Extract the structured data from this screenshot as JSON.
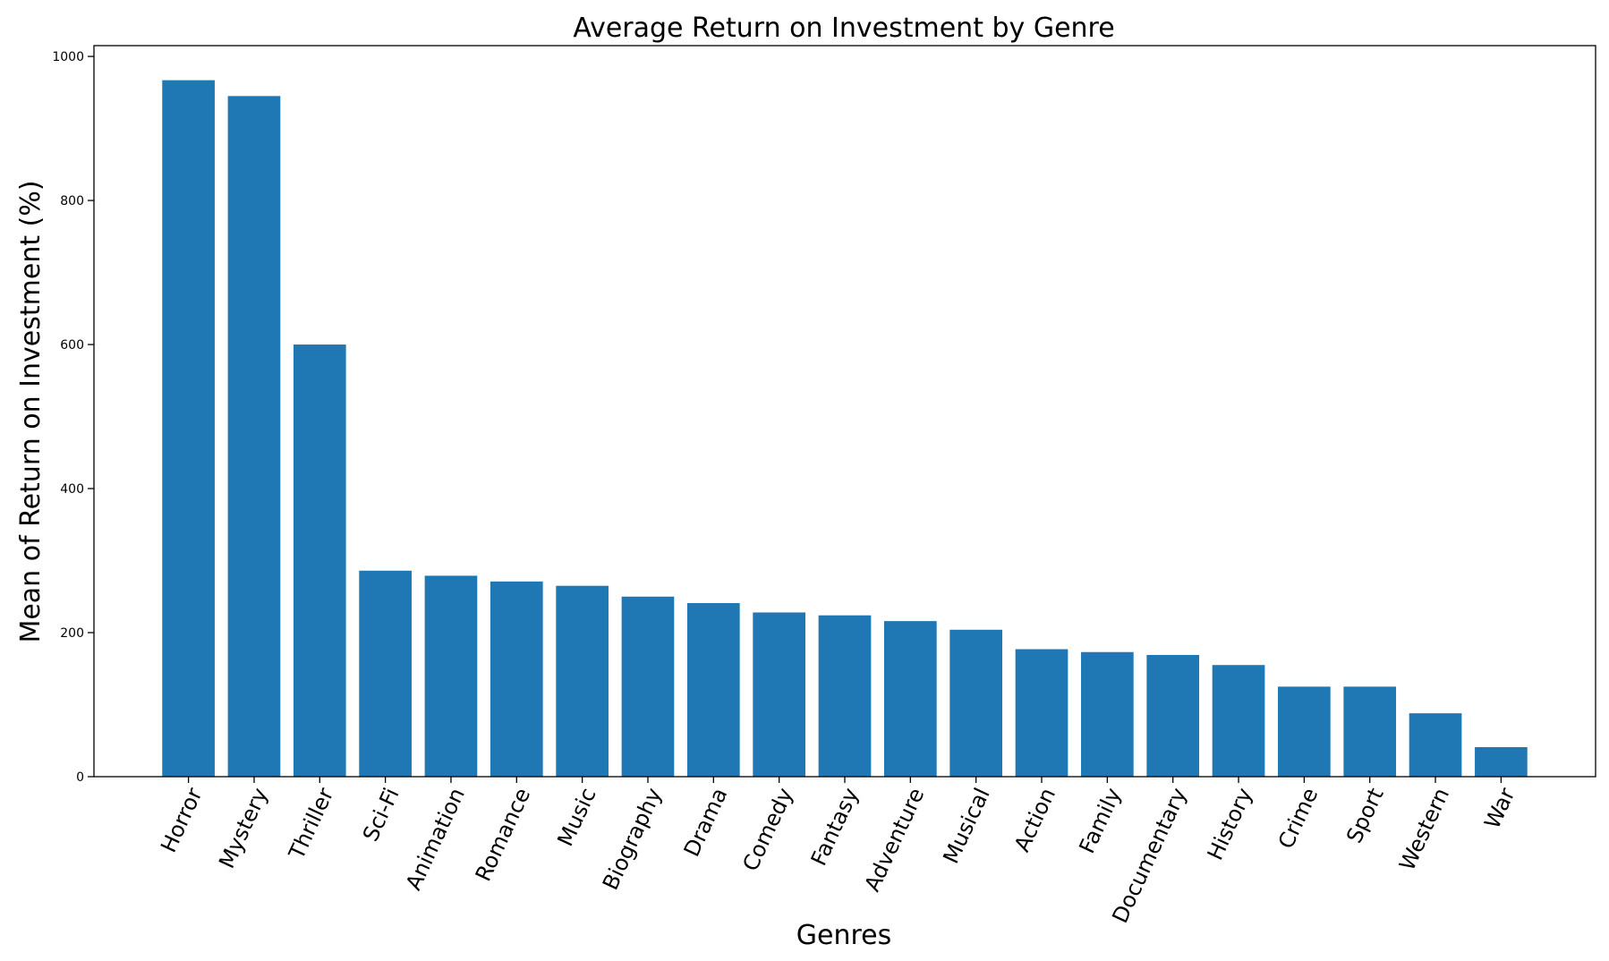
{
  "chart_data": {
    "type": "bar",
    "title": "Average Return on Investment by Genre",
    "xlabel": "Genres",
    "ylabel": "Mean of Return on Investment (%)",
    "categories": [
      "Horror",
      "Mystery",
      "Thriller",
      "Sci-Fi",
      "Animation",
      "Romance",
      "Music",
      "Biography",
      "Drama",
      "Comedy",
      "Fantasy",
      "Adventure",
      "Musical",
      "Action",
      "Family",
      "Documentary",
      "History",
      "Crime",
      "Sport",
      "Western",
      "War"
    ],
    "values": [
      967,
      945,
      600,
      286,
      279,
      271,
      265,
      250,
      241,
      228,
      224,
      216,
      204,
      177,
      173,
      169,
      155,
      125,
      125,
      88,
      41
    ],
    "ylim": [
      0,
      1015
    ],
    "yticks": [
      0,
      200,
      400,
      600,
      800,
      1000
    ],
    "bar_color": "#1f77b4",
    "grid": false
  }
}
